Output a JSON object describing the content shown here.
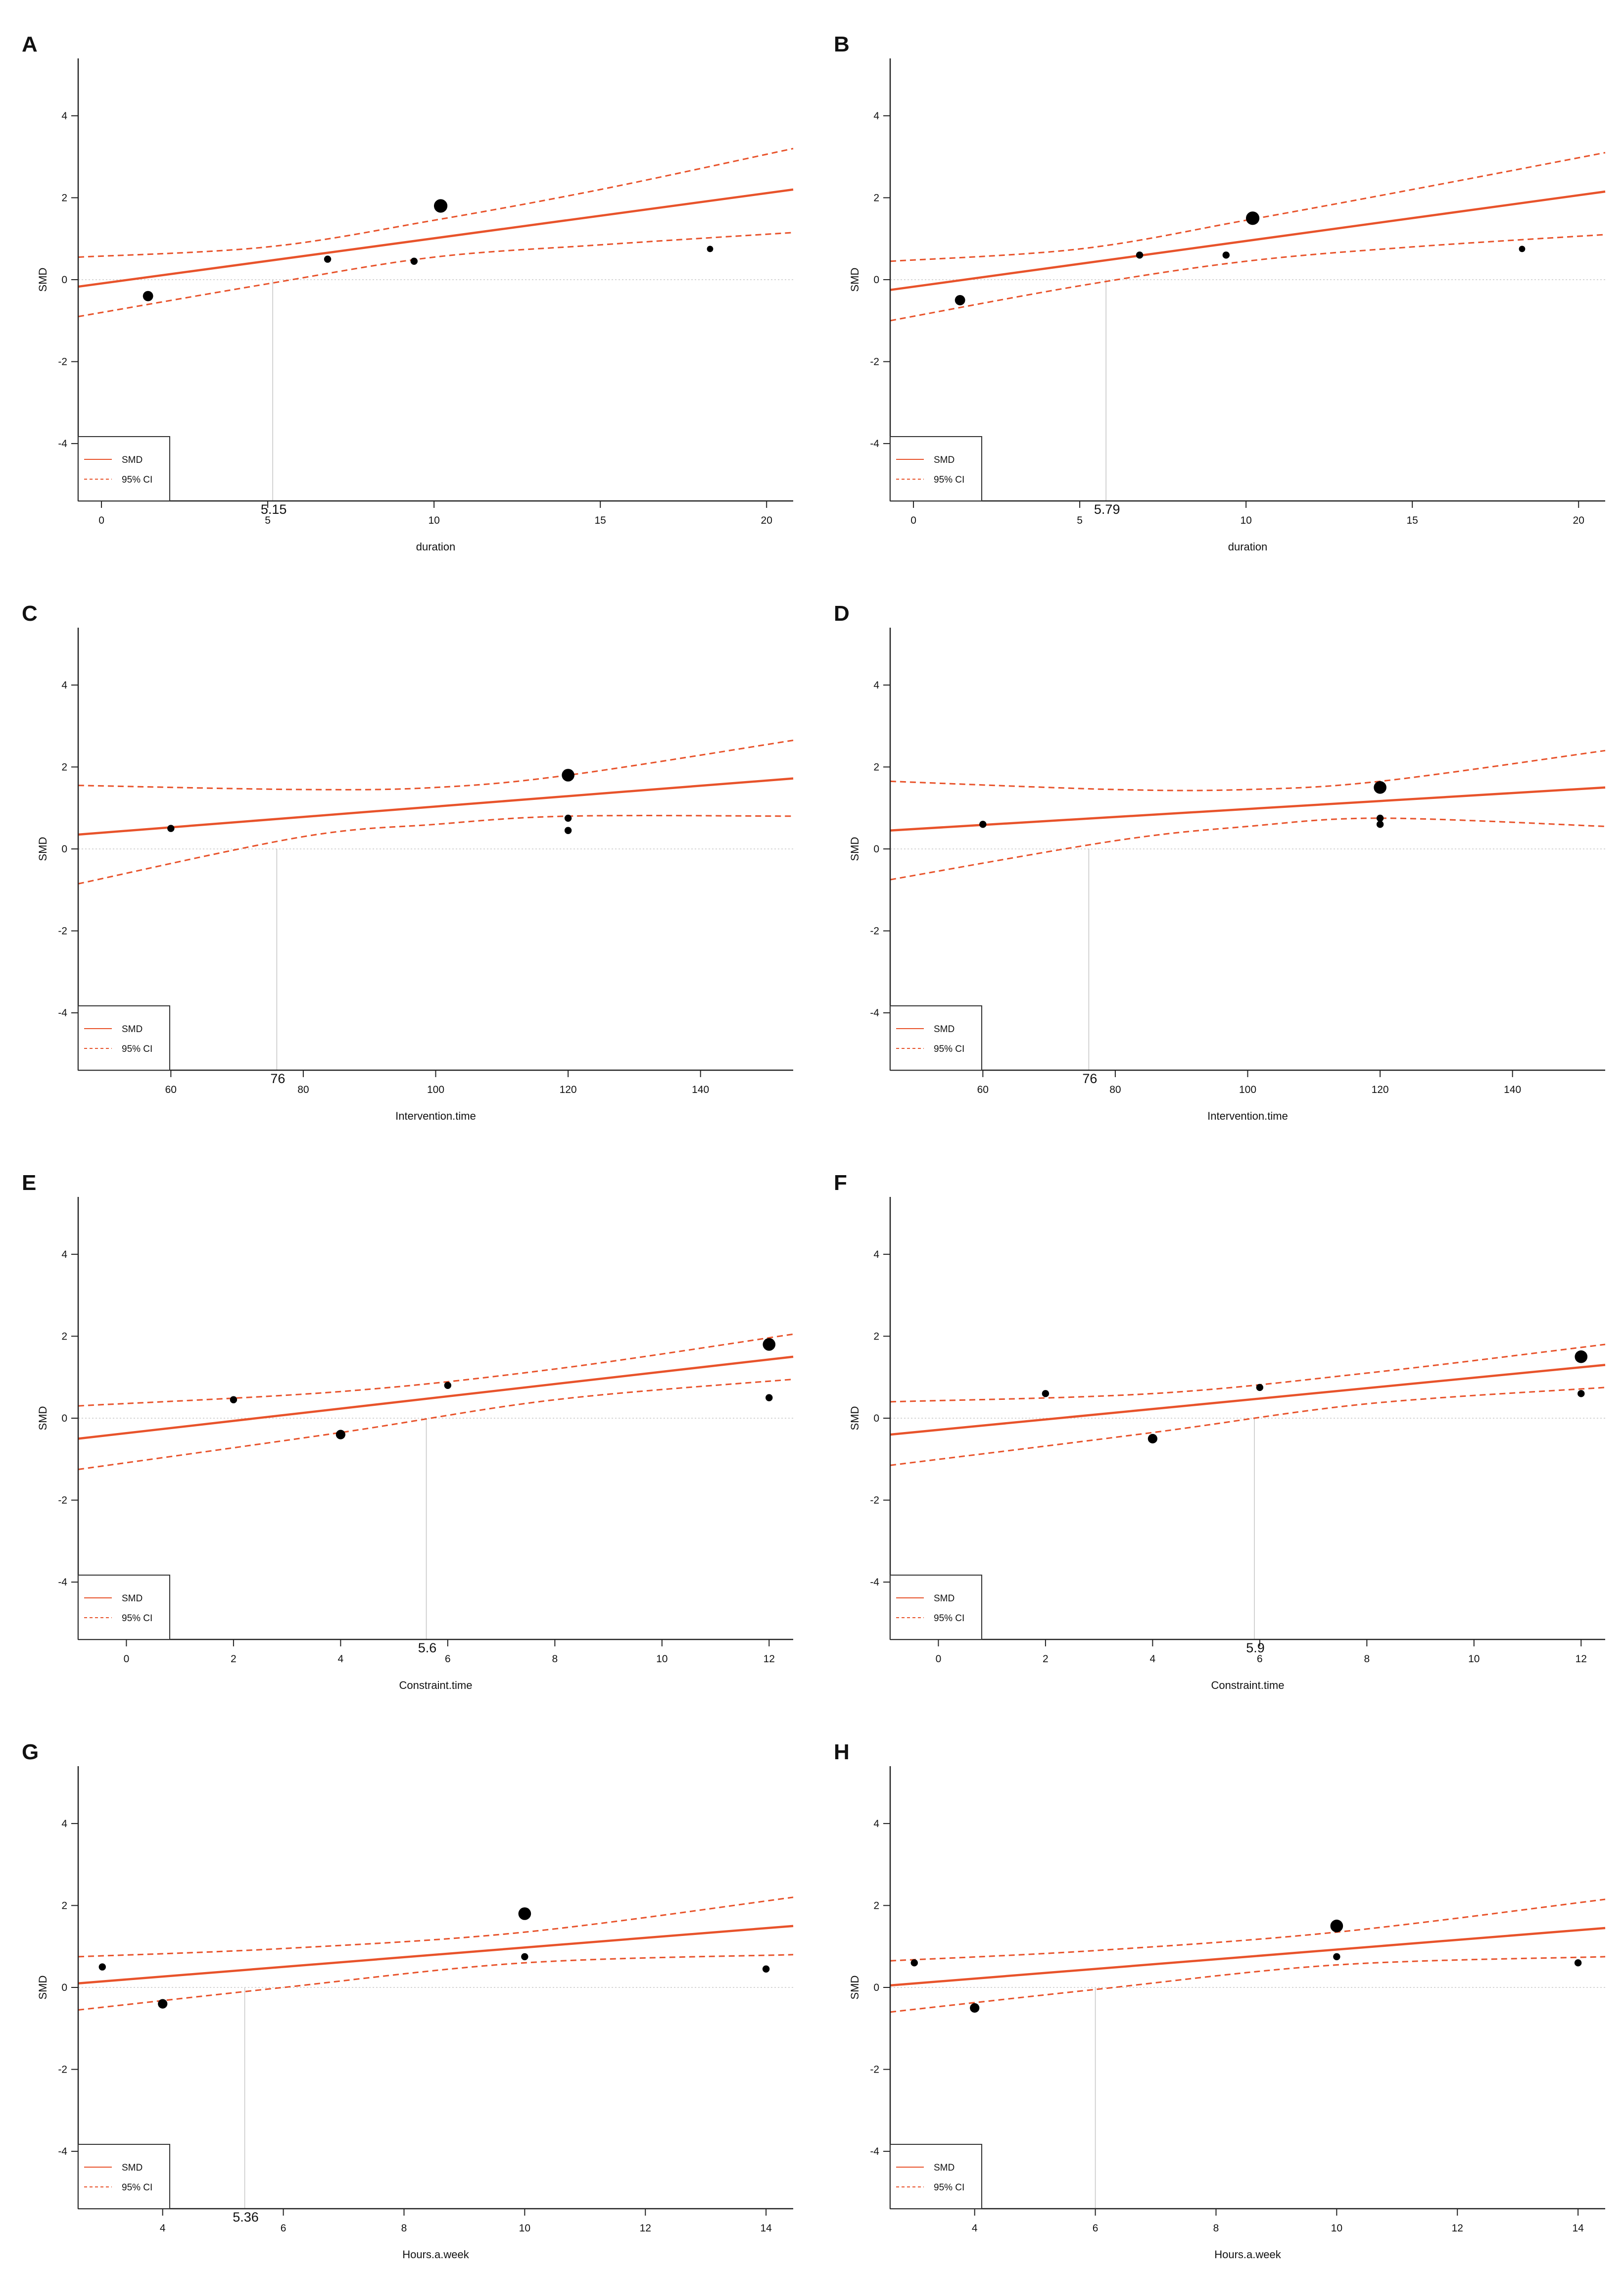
{
  "figure": {
    "accent_color": "#e8532b",
    "point_color": "#000000",
    "guide_color": "#c8c8c8"
  },
  "chart_data": [
    {
      "panel": "A",
      "type": "scatter",
      "xlabel": "duration",
      "ylabel": "SMD",
      "xlim": [
        -0.7,
        20.8
      ],
      "ylim": [
        -5.4,
        5.4
      ],
      "xticks": [
        0,
        5,
        10,
        15,
        20
      ],
      "yticks": [
        4,
        2,
        0,
        -2,
        -4
      ],
      "threshold": 5.15,
      "threshold_label": "5.15",
      "points": [
        {
          "x": 1.4,
          "y": -0.4,
          "w": 1.3
        },
        {
          "x": 6.8,
          "y": 0.5,
          "w": 0.9
        },
        {
          "x": 9.4,
          "y": 0.45,
          "w": 0.9
        },
        {
          "x": 10.2,
          "y": 1.8,
          "w": 1.7
        },
        {
          "x": 18.3,
          "y": 0.75,
          "w": 0.8
        }
      ],
      "fit": {
        "x": [
          -0.7,
          20.8
        ],
        "y": [
          -0.17,
          2.2
        ]
      },
      "ci_upper": {
        "x": [
          -0.7,
          5,
          10,
          15,
          20.8
        ],
        "y": [
          0.55,
          0.8,
          1.45,
          2.2,
          3.2
        ]
      },
      "ci_lower": {
        "x": [
          -0.7,
          5,
          10,
          15,
          20.8
        ],
        "y": [
          -0.9,
          -0.1,
          0.55,
          0.85,
          1.15
        ]
      },
      "legend": [
        {
          "label": "SMD",
          "style": "solid"
        },
        {
          "label": "95% CI",
          "style": "dashed"
        }
      ]
    },
    {
      "panel": "B",
      "type": "scatter",
      "xlabel": "duration",
      "ylabel": "SMD",
      "xlim": [
        -0.7,
        20.8
      ],
      "ylim": [
        -5.4,
        5.4
      ],
      "xticks": [
        0,
        5,
        10,
        15,
        20
      ],
      "yticks": [
        4,
        2,
        0,
        -2,
        -4
      ],
      "threshold": 5.79,
      "threshold_label": "5.79",
      "points": [
        {
          "x": 1.4,
          "y": -0.5,
          "w": 1.3
        },
        {
          "x": 6.8,
          "y": 0.6,
          "w": 0.9
        },
        {
          "x": 9.4,
          "y": 0.6,
          "w": 0.9
        },
        {
          "x": 10.2,
          "y": 1.5,
          "w": 1.7
        },
        {
          "x": 18.3,
          "y": 0.75,
          "w": 0.8
        }
      ],
      "fit": {
        "x": [
          -0.7,
          20.8
        ],
        "y": [
          -0.25,
          2.15
        ]
      },
      "ci_upper": {
        "x": [
          -0.7,
          5,
          10,
          15,
          20.8
        ],
        "y": [
          0.45,
          0.75,
          1.45,
          2.2,
          3.1
        ]
      },
      "ci_lower": {
        "x": [
          -0.7,
          5,
          10,
          15,
          20.8
        ],
        "y": [
          -1.0,
          -0.15,
          0.45,
          0.8,
          1.1
        ]
      },
      "legend": [
        {
          "label": "SMD",
          "style": "solid"
        },
        {
          "label": "95% CI",
          "style": "dashed"
        }
      ]
    },
    {
      "panel": "C",
      "type": "scatter",
      "xlabel": "Intervention.time",
      "ylabel": "SMD",
      "xlim": [
        46,
        154
      ],
      "ylim": [
        -5.4,
        5.4
      ],
      "xticks": [
        60,
        80,
        100,
        120,
        140
      ],
      "yticks": [
        4,
        2,
        0,
        -2,
        -4
      ],
      "threshold": 76,
      "threshold_label": "76",
      "points": [
        {
          "x": 60,
          "y": 0.5,
          "w": 0.9
        },
        {
          "x": 120,
          "y": 1.8,
          "w": 1.6
        },
        {
          "x": 120,
          "y": 0.75,
          "w": 0.9
        },
        {
          "x": 120,
          "y": 0.45,
          "w": 0.9
        }
      ],
      "fit": {
        "x": [
          46,
          154
        ],
        "y": [
          0.35,
          1.72
        ]
      },
      "ci_upper": {
        "x": [
          46,
          80,
          100,
          120,
          154
        ],
        "y": [
          1.55,
          1.45,
          1.5,
          1.8,
          2.65
        ]
      },
      "ci_lower": {
        "x": [
          46,
          80,
          100,
          120,
          154
        ],
        "y": [
          -0.85,
          0.3,
          0.6,
          0.8,
          0.8
        ]
      },
      "legend": [
        {
          "label": "SMD",
          "style": "solid"
        },
        {
          "label": "95% CI",
          "style": "dashed"
        }
      ]
    },
    {
      "panel": "D",
      "type": "scatter",
      "xlabel": "Intervention.time",
      "ylabel": "SMD",
      "xlim": [
        46,
        154
      ],
      "ylim": [
        -5.4,
        5.4
      ],
      "xticks": [
        60,
        80,
        100,
        120,
        140
      ],
      "yticks": [
        4,
        2,
        0,
        -2,
        -4
      ],
      "threshold": 76,
      "threshold_label": "76",
      "points": [
        {
          "x": 60,
          "y": 0.6,
          "w": 0.9
        },
        {
          "x": 120,
          "y": 1.5,
          "w": 1.6
        },
        {
          "x": 120,
          "y": 0.75,
          "w": 0.9
        },
        {
          "x": 120,
          "y": 0.6,
          "w": 0.9
        }
      ],
      "fit": {
        "x": [
          46,
          154
        ],
        "y": [
          0.45,
          1.5
        ]
      },
      "ci_upper": {
        "x": [
          46,
          80,
          100,
          120,
          154
        ],
        "y": [
          1.65,
          1.45,
          1.45,
          1.65,
          2.4
        ]
      },
      "ci_lower": {
        "x": [
          46,
          80,
          100,
          120,
          154
        ],
        "y": [
          -0.75,
          0.2,
          0.55,
          0.75,
          0.55
        ]
      },
      "legend": [
        {
          "label": "SMD",
          "style": "solid"
        },
        {
          "label": "95% CI",
          "style": "dashed"
        }
      ]
    },
    {
      "panel": "E",
      "type": "scatter",
      "xlabel": "Constraint.time",
      "ylabel": "SMD",
      "xlim": [
        -0.9,
        12.45
      ],
      "ylim": [
        -5.4,
        5.4
      ],
      "xticks": [
        0,
        2,
        4,
        6,
        8,
        10,
        12
      ],
      "yticks": [
        4,
        2,
        0,
        -2,
        -4
      ],
      "threshold": 5.6,
      "threshold_label": "5.6",
      "points": [
        {
          "x": 2,
          "y": 0.45,
          "w": 0.9
        },
        {
          "x": 4,
          "y": -0.4,
          "w": 1.2
        },
        {
          "x": 6,
          "y": 0.8,
          "w": 0.9
        },
        {
          "x": 12,
          "y": 1.8,
          "w": 1.6
        },
        {
          "x": 12,
          "y": 0.5,
          "w": 0.9
        }
      ],
      "fit": {
        "x": [
          -0.9,
          12.45
        ],
        "y": [
          -0.5,
          1.5
        ]
      },
      "ci_upper": {
        "x": [
          -0.9,
          4,
          8,
          12.45
        ],
        "y": [
          0.3,
          0.65,
          1.2,
          2.05
        ]
      },
      "ci_lower": {
        "x": [
          -0.9,
          4,
          8,
          12.45
        ],
        "y": [
          -1.25,
          -0.35,
          0.45,
          0.95
        ]
      },
      "legend": [
        {
          "label": "SMD",
          "style": "solid"
        },
        {
          "label": "95% CI",
          "style": "dashed"
        }
      ]
    },
    {
      "panel": "F",
      "type": "scatter",
      "xlabel": "Constraint.time",
      "ylabel": "SMD",
      "xlim": [
        -0.9,
        12.45
      ],
      "ylim": [
        -5.4,
        5.4
      ],
      "xticks": [
        0,
        2,
        4,
        6,
        8,
        10,
        12
      ],
      "yticks": [
        4,
        2,
        0,
        -2,
        -4
      ],
      "threshold": 5.9,
      "threshold_label": "5.9",
      "points": [
        {
          "x": 2,
          "y": 0.6,
          "w": 0.9
        },
        {
          "x": 4,
          "y": -0.5,
          "w": 1.2
        },
        {
          "x": 6,
          "y": 0.75,
          "w": 0.9
        },
        {
          "x": 12,
          "y": 1.5,
          "w": 1.6
        },
        {
          "x": 12,
          "y": 0.6,
          "w": 0.9
        }
      ],
      "fit": {
        "x": [
          -0.9,
          12.45
        ],
        "y": [
          -0.4,
          1.3
        ]
      },
      "ci_upper": {
        "x": [
          -0.9,
          4,
          8,
          12.45
        ],
        "y": [
          0.4,
          0.6,
          1.1,
          1.8
        ]
      },
      "ci_lower": {
        "x": [
          -0.9,
          4,
          8,
          12.45
        ],
        "y": [
          -1.15,
          -0.35,
          0.35,
          0.75
        ]
      },
      "legend": [
        {
          "label": "SMD",
          "style": "solid"
        },
        {
          "label": "95% CI",
          "style": "dashed"
        }
      ]
    },
    {
      "panel": "G",
      "type": "scatter",
      "xlabel": "Hours.a.week",
      "ylabel": "SMD",
      "xlim": [
        2.6,
        14.45
      ],
      "ylim": [
        -5.4,
        5.4
      ],
      "xticks": [
        4,
        6,
        8,
        10,
        12,
        14
      ],
      "yticks": [
        4,
        2,
        0,
        -2,
        -4
      ],
      "threshold": 5.36,
      "threshold_label": "5.36",
      "points": [
        {
          "x": 3,
          "y": 0.5,
          "w": 0.9
        },
        {
          "x": 4,
          "y": -0.4,
          "w": 1.2
        },
        {
          "x": 10,
          "y": 1.8,
          "w": 1.6
        },
        {
          "x": 10,
          "y": 0.75,
          "w": 0.9
        },
        {
          "x": 14,
          "y": 0.45,
          "w": 0.9
        }
      ],
      "fit": {
        "x": [
          2.6,
          14.45
        ],
        "y": [
          0.1,
          1.5
        ]
      },
      "ci_upper": {
        "x": [
          2.6,
          6,
          10,
          14.45
        ],
        "y": [
          0.75,
          0.95,
          1.35,
          2.2
        ]
      },
      "ci_lower": {
        "x": [
          2.6,
          6,
          10,
          14.45
        ],
        "y": [
          -0.55,
          0.0,
          0.6,
          0.8
        ]
      },
      "legend": [
        {
          "label": "SMD",
          "style": "solid"
        },
        {
          "label": "95% CI",
          "style": "dashed"
        }
      ]
    },
    {
      "panel": "H",
      "type": "scatter",
      "xlabel": "Hours.a.week",
      "ylabel": "SMD",
      "xlim": [
        2.6,
        14.45
      ],
      "ylim": [
        -5.4,
        5.4
      ],
      "xticks": [
        4,
        6,
        8,
        10,
        12,
        14
      ],
      "yticks": [
        4,
        2,
        0,
        -2,
        -4
      ],
      "threshold": 6,
      "threshold_label": "",
      "points": [
        {
          "x": 3,
          "y": 0.6,
          "w": 0.9
        },
        {
          "x": 4,
          "y": -0.5,
          "w": 1.2
        },
        {
          "x": 10,
          "y": 1.5,
          "w": 1.6
        },
        {
          "x": 10,
          "y": 0.75,
          "w": 0.9
        },
        {
          "x": 14,
          "y": 0.6,
          "w": 0.9
        }
      ],
      "fit": {
        "x": [
          2.6,
          14.45
        ],
        "y": [
          0.05,
          1.45
        ]
      },
      "ci_upper": {
        "x": [
          2.6,
          6,
          10,
          14.45
        ],
        "y": [
          0.65,
          0.9,
          1.35,
          2.15
        ]
      },
      "ci_lower": {
        "x": [
          2.6,
          6,
          10,
          14.45
        ],
        "y": [
          -0.6,
          -0.05,
          0.55,
          0.75
        ]
      },
      "legend": [
        {
          "label": "SMD",
          "style": "solid"
        },
        {
          "label": "95% CI",
          "style": "dashed"
        }
      ]
    }
  ]
}
